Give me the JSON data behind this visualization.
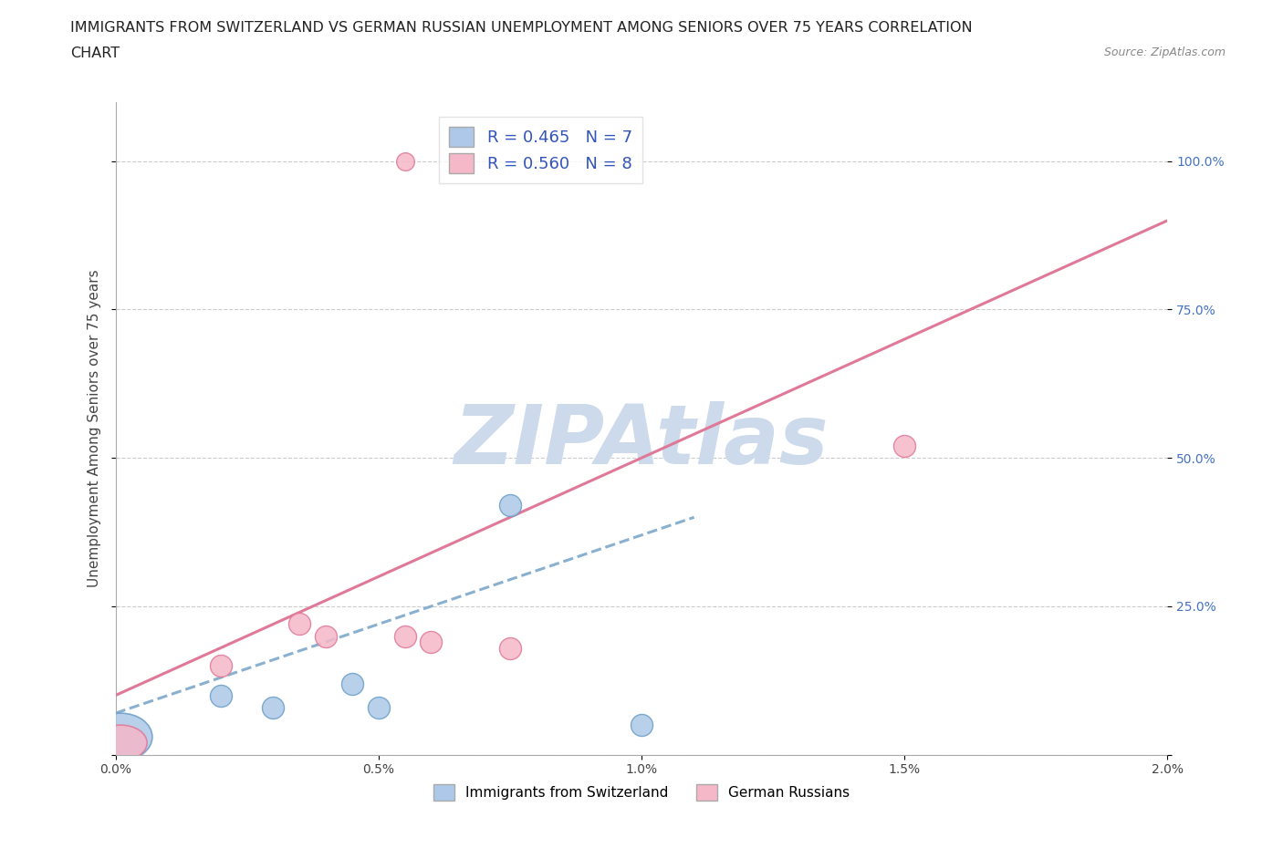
{
  "title_line1": "IMMIGRANTS FROM SWITZERLAND VS GERMAN RUSSIAN UNEMPLOYMENT AMONG SENIORS OVER 75 YEARS CORRELATION",
  "title_line2": "CHART",
  "source": "Source: ZipAtlas.com",
  "ylabel": "Unemployment Among Seniors over 75 years",
  "watermark": "ZIPAtlas",
  "xlim": [
    0.0,
    2.0
  ],
  "ylim": [
    0.0,
    110.0
  ],
  "xticks": [
    0.0,
    0.5,
    1.0,
    1.5,
    2.0
  ],
  "xtick_labels": [
    "0.0%",
    "0.5%",
    "1.0%",
    "1.5%",
    "2.0%"
  ],
  "ytick_positions": [
    0.0,
    25.0,
    50.0,
    75.0,
    100.0
  ],
  "ytick_labels_right": [
    "",
    "25.0%",
    "50.0%",
    "75.0%",
    "100.0%"
  ],
  "series1_name": "Immigrants from Switzerland",
  "series1_color": "#adc8e8",
  "series1_edge_color": "#6a9ec8",
  "series1_line_color": "#8ab0d0",
  "series1_R": 0.465,
  "series1_N": 7,
  "series1_x": [
    0.01,
    0.2,
    0.3,
    0.45,
    0.5,
    0.75,
    1.0
  ],
  "series1_y": [
    3.0,
    10.0,
    8.0,
    12.0,
    8.0,
    42.0,
    5.0
  ],
  "series1_sizes": [
    1200,
    300,
    300,
    300,
    300,
    300,
    300
  ],
  "series2_name": "German Russians",
  "series2_color": "#f5b8c8",
  "series2_edge_color": "#e07898",
  "series2_line_color": "#e07898",
  "series2_R": 0.56,
  "series2_N": 8,
  "series2_x": [
    0.01,
    0.2,
    0.35,
    0.4,
    0.55,
    0.6,
    0.75,
    1.5
  ],
  "series2_y": [
    2.0,
    15.0,
    22.0,
    20.0,
    20.0,
    19.0,
    18.0,
    52.0
  ],
  "series2_sizes": [
    600,
    300,
    300,
    300,
    300,
    300,
    300,
    300
  ],
  "series1_line_x": [
    0.0,
    1.1
  ],
  "series1_line_y": [
    7.0,
    40.0
  ],
  "series2_line_x": [
    0.0,
    2.0
  ],
  "series2_line_y": [
    10.0,
    90.0
  ],
  "pink_outlier_x": 0.55,
  "pink_outlier_y": 100.0,
  "blue_outlier_x": 1.0,
  "blue_outlier_y": 3.0,
  "background_color": "#ffffff",
  "grid_color": "#cccccc",
  "title_fontsize": 11.5,
  "axis_label_fontsize": 11,
  "tick_fontsize": 10,
  "legend_fontsize": 13,
  "watermark_color": "#ccdaeb",
  "watermark_fontsize": 65,
  "right_tick_color": "#4472c4"
}
